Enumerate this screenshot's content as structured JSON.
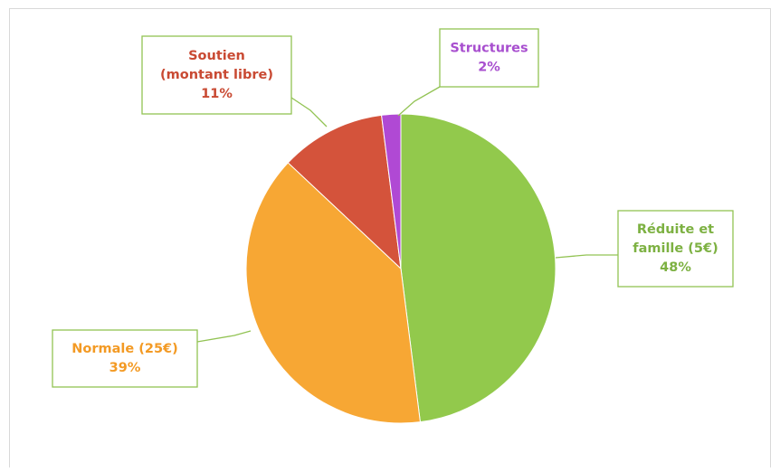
{
  "chart_data": {
    "type": "pie",
    "title": "",
    "slices": [
      {
        "name": "Réduite et famille (5€)",
        "label_lines": [
          "Réduite et",
          "famille (5€)"
        ],
        "percent_label": "48%",
        "value": 48,
        "color": "#92c94c"
      },
      {
        "name": "Normale (25€)",
        "label_lines": [
          "Normale (25€)"
        ],
        "percent_label": "39%",
        "value": 39,
        "color": "#f7a734"
      },
      {
        "name": "Soutien (montant libre)",
        "label_lines": [
          "Soutien",
          "(montant libre)"
        ],
        "percent_label": "11%",
        "value": 11,
        "color": "#d4533b"
      },
      {
        "name": "Structures",
        "label_lines": [
          "Structures"
        ],
        "percent_label": "2%",
        "value": 2,
        "color": "#b049d4"
      }
    ],
    "start_angle_deg": 0,
    "direction": "clockwise",
    "label_border_color": "#92c353",
    "text_colors": {
      "Réduite et famille (5€)": "#7db142",
      "Normale (25€)": "#f39a24",
      "Soutien (montant libre)": "#c94a33",
      "Structures": "#a84fcf"
    }
  }
}
